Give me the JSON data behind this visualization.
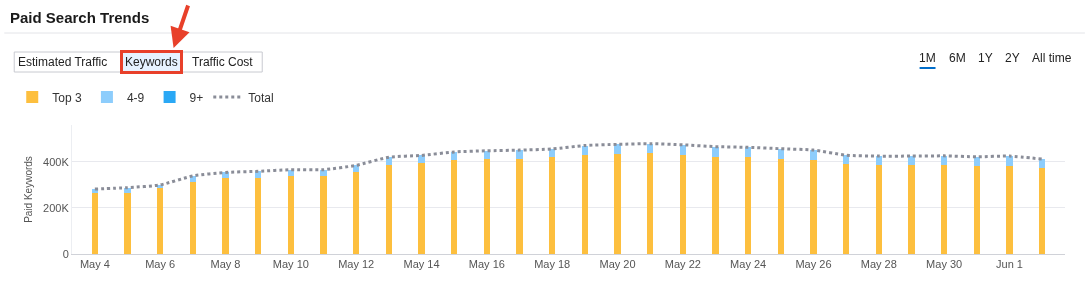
{
  "chart_data": {
    "type": "bar",
    "title": "Paid Search Trends",
    "ylabel": "Paid Keywords",
    "stacked": true,
    "categories": [
      "May 4",
      null,
      "May 6",
      null,
      "May 8",
      null,
      "May 10",
      null,
      "May 12",
      null,
      "May 14",
      null,
      "May 16",
      null,
      "May 18",
      null,
      "May 20",
      null,
      "May 22",
      null,
      "May 24",
      null,
      "May 26",
      null,
      "May 28",
      null,
      "May 30",
      null,
      "Jun 1",
      null
    ],
    "series": [
      {
        "name": "Top 3",
        "color": "#fdbf3e",
        "values": [
          263000,
          266000,
          285000,
          313000,
          330000,
          331000,
          339000,
          340000,
          354000,
          388000,
          394000,
          409000,
          411000,
          412000,
          419000,
          430000,
          433000,
          437000,
          431000,
          422000,
          420000,
          412000,
          409000,
          389000,
          385000,
          386000,
          388000,
          383000,
          383000,
          374000
        ]
      },
      {
        "name": "4-9",
        "color": "#8dcdfc",
        "values": [
          19000,
          22000,
          15000,
          26000,
          24000,
          28000,
          27000,
          26000,
          31000,
          32000,
          34000,
          34000,
          37000,
          39000,
          37000,
          41000,
          43000,
          42000,
          43000,
          44000,
          43000,
          45000,
          42000,
          40000,
          40000,
          39000,
          38000,
          39000,
          42000,
          38000
        ]
      },
      {
        "name": "9+",
        "color": "#2aa8f5",
        "values": [
          0,
          0,
          0,
          0,
          0,
          0,
          0,
          0,
          0,
          0,
          0,
          0,
          0,
          0,
          0,
          0,
          0,
          0,
          0,
          0,
          0,
          0,
          0,
          0,
          0,
          0,
          0,
          0,
          0,
          0
        ]
      },
      {
        "name": "Total",
        "type": "line",
        "color": "#8a8d98",
        "line_style": "dotted",
        "marker": "none",
        "values": [
          282000,
          288000,
          300000,
          339000,
          354000,
          359000,
          366000,
          366000,
          385000,
          420000,
          428000,
          443000,
          448000,
          451000,
          456000,
          471000,
          476000,
          479000,
          474000,
          466000,
          463000,
          457000,
          451000,
          429000,
          425000,
          425000,
          426000,
          422000,
          425000,
          412000
        ]
      }
    ],
    "ylim": [
      0,
      560000
    ],
    "yticks": [
      0,
      {
        "value": 200000,
        "label": "200K"
      },
      {
        "value": 400000,
        "label": "400K"
      }
    ],
    "grid": "y",
    "legend": "top left",
    "annotations": [
      "Estimated Traffic",
      "Keywords",
      "Traffic Cost",
      "1M",
      "6M",
      "1Y",
      "2Y",
      "All time"
    ]
  }
}
